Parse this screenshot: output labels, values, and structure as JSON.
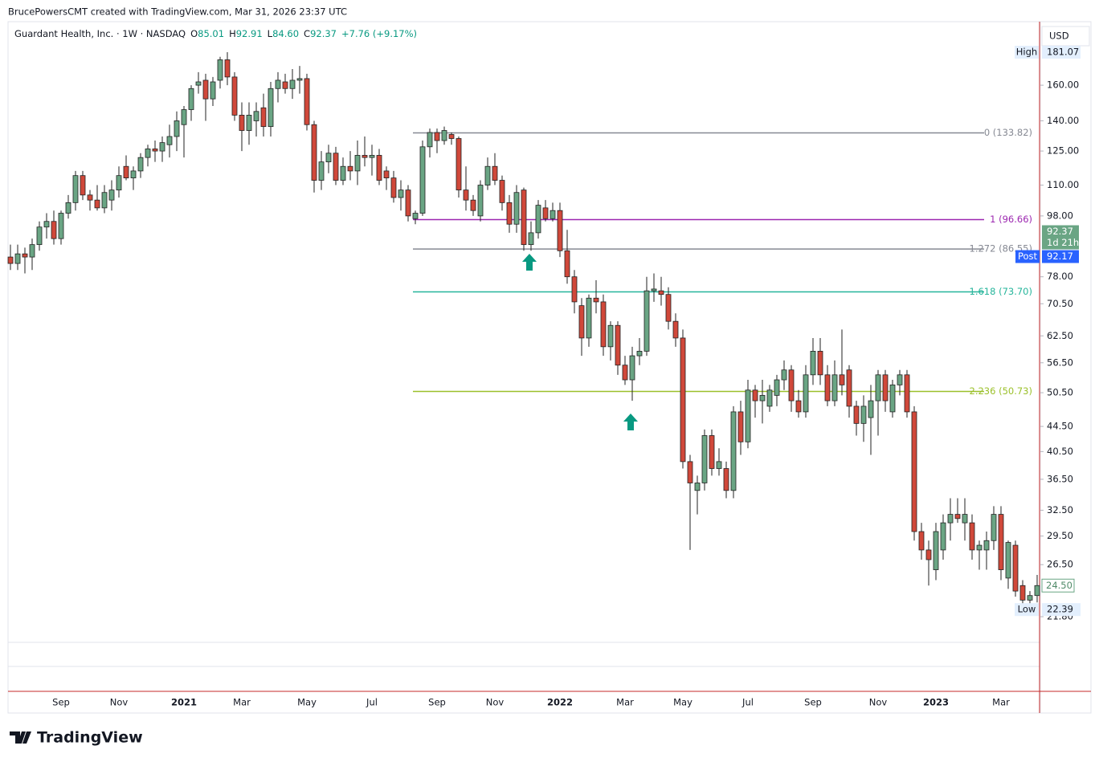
{
  "header": {
    "credit": "BrucePowersCMT created with TradingView.com, Mar 31, 2026 23:37 UTC",
    "symbol": "Guardant Health, Inc. · 1W · NASDAQ",
    "ohlc": [
      {
        "key": "O",
        "value": "85.01"
      },
      {
        "key": "H",
        "value": "92.91"
      },
      {
        "key": "L",
        "value": "84.60"
      },
      {
        "key": "C",
        "value": "92.37"
      }
    ],
    "change": "+7.76 (+9.17%)",
    "currency": "USD"
  },
  "brand": "TradingView",
  "chart_data": {
    "type": "candlestick",
    "log_scale": true,
    "up_color": "#6aa584",
    "down_color": "#d0483a",
    "border_color": "#222222",
    "ylim": [
      19.8,
      199.4
    ],
    "yticks": [
      {
        "value": 160,
        "label": "160.00"
      },
      {
        "value": 140,
        "label": "140.00"
      },
      {
        "value": 125,
        "label": "125.00"
      },
      {
        "value": 110,
        "label": "110.00"
      },
      {
        "value": 98,
        "label": "98.00"
      },
      {
        "value": 78,
        "label": "78.00"
      },
      {
        "value": 70.5,
        "label": "70.50"
      },
      {
        "value": 62.5,
        "label": "62.50"
      },
      {
        "value": 56.5,
        "label": "56.50"
      },
      {
        "value": 50.5,
        "label": "50.50"
      },
      {
        "value": 44.5,
        "label": "44.50"
      },
      {
        "value": 40.5,
        "label": "40.50"
      },
      {
        "value": 36.5,
        "label": "36.50"
      },
      {
        "value": 32.5,
        "label": "32.50"
      },
      {
        "value": 29.5,
        "label": "29.50"
      },
      {
        "value": 26.5,
        "label": "26.50"
      },
      {
        "value": 21.8,
        "label": "21.80"
      }
    ],
    "categories": [
      null,
      null,
      null,
      null,
      null,
      null,
      null,
      "Sep",
      null,
      null,
      null,
      null,
      null,
      null,
      null,
      "Nov",
      null,
      null,
      null,
      null,
      null,
      null,
      null,
      null,
      "2021",
      null,
      null,
      null,
      null,
      null,
      null,
      null,
      "Mar",
      null,
      null,
      null,
      null,
      null,
      null,
      null,
      null,
      "May",
      null,
      null,
      null,
      null,
      null,
      null,
      null,
      null,
      "Jul",
      null,
      null,
      null,
      null,
      null,
      null,
      null,
      null,
      "Sep",
      null,
      null,
      null,
      null,
      null,
      null,
      null,
      "Nov",
      null,
      null,
      null,
      null,
      null,
      null,
      null,
      null,
      "2022",
      null,
      null,
      null,
      null,
      null,
      null,
      null,
      null,
      "Mar",
      null,
      null,
      null,
      null,
      null,
      null,
      null,
      "May",
      null,
      null,
      null,
      null,
      null,
      null,
      null,
      null,
      "Jul",
      null,
      null,
      null,
      null,
      null,
      null,
      null,
      null,
      "Sep",
      null,
      null,
      null,
      null,
      null,
      null,
      null,
      null,
      "Nov",
      null,
      null,
      null,
      null,
      null,
      null,
      null,
      "2023",
      null,
      null,
      null,
      null,
      null,
      null,
      null,
      null,
      "Mar",
      null,
      null,
      null,
      null,
      null
    ],
    "open": [
      84,
      82,
      85,
      84,
      88,
      94,
      96,
      90,
      99,
      103,
      114,
      106,
      104,
      101,
      104,
      108,
      118,
      113,
      116,
      122,
      126,
      125,
      128,
      132,
      138,
      146,
      160,
      163,
      152,
      163,
      176,
      165,
      143,
      135,
      140,
      147,
      137,
      158,
      162,
      158,
      163,
      164,
      138,
      112,
      120,
      124,
      112,
      118,
      116,
      123,
      122,
      123,
      116,
      113,
      105,
      108,
      97,
      99,
      127,
      134,
      130,
      133,
      131,
      108,
      104,
      98,
      110,
      118,
      112,
      103,
      95,
      108,
      88,
      92,
      101,
      97,
      100,
      86,
      78,
      70,
      62,
      72,
      71,
      60,
      65,
      56,
      53,
      58,
      59,
      74,
      74,
      73,
      66,
      62,
      39,
      35,
      36,
      43,
      38,
      38,
      35,
      47,
      42,
      51,
      49,
      48,
      50,
      53,
      55,
      49,
      47,
      54,
      59,
      54,
      49,
      54,
      55,
      48,
      45,
      46,
      49,
      54,
      47,
      52,
      54,
      47,
      30,
      28,
      26,
      28,
      31,
      32,
      31,
      31,
      28,
      28,
      29,
      32,
      25.2,
      28.5,
      24.5,
      23.2,
      23.6
    ],
    "high": [
      88,
      88,
      87,
      90,
      96,
      99,
      100,
      100,
      106,
      116,
      116,
      108,
      110,
      110,
      112,
      118,
      123,
      118,
      124,
      128,
      130,
      132,
      138,
      145,
      148,
      160,
      168,
      167,
      165,
      178,
      181.07,
      168,
      150,
      150,
      150,
      155,
      162,
      168,
      167,
      170,
      172,
      167,
      140,
      125,
      128,
      127,
      122,
      125,
      130,
      132,
      128,
      126,
      118,
      116,
      112,
      110,
      100,
      130,
      136,
      136,
      137,
      134,
      132,
      118,
      106,
      112,
      122,
      124,
      114,
      106,
      110,
      109,
      96,
      104,
      104,
      103,
      103,
      93,
      80,
      72,
      73,
      77,
      73,
      66,
      66,
      58,
      60,
      62,
      78,
      79,
      78,
      75,
      68,
      64,
      40,
      37,
      44,
      44,
      41,
      39,
      48,
      49,
      53,
      52,
      53,
      52,
      54,
      57,
      56,
      51,
      56,
      62,
      62,
      56,
      57,
      64,
      56,
      49,
      50,
      52,
      55,
      55,
      53,
      55,
      55,
      48,
      31,
      29,
      31,
      32,
      34,
      34,
      34,
      32,
      29,
      30,
      33,
      33,
      29,
      29,
      25,
      24,
      25.5
    ],
    "low": [
      80,
      80,
      79,
      80,
      86,
      90,
      88,
      88,
      97,
      100,
      104,
      100,
      100,
      99,
      100,
      105,
      112,
      108,
      113,
      118,
      120,
      120,
      122,
      125,
      122,
      140,
      155,
      140,
      148,
      158,
      160,
      140,
      125,
      128,
      132,
      132,
      132,
      150,
      155,
      152,
      155,
      135,
      107,
      108,
      115,
      110,
      110,
      112,
      110,
      118,
      114,
      110,
      108,
      103,
      100,
      96,
      95,
      98,
      122,
      124,
      128,
      128,
      105,
      100,
      98,
      96,
      108,
      110,
      100,
      92,
      92,
      86,
      86,
      90,
      96,
      96,
      84,
      76,
      68,
      58,
      60,
      68,
      58,
      57,
      54,
      52,
      49,
      56,
      58,
      71,
      70,
      64,
      60,
      38,
      28,
      32,
      35,
      37,
      37,
      34,
      34,
      40,
      41,
      46,
      45,
      47,
      48,
      51,
      47,
      46,
      46,
      52,
      52,
      48,
      48,
      50,
      46,
      43,
      42,
      40,
      43,
      47,
      46,
      50,
      46,
      29,
      27,
      24.5,
      25,
      27,
      29,
      31,
      29,
      27,
      26,
      26,
      28,
      25,
      24.2,
      23.5,
      22.39,
      22.8,
      23
    ],
    "close": [
      82,
      85,
      84,
      88,
      94,
      96,
      90,
      99,
      103,
      114,
      106,
      104,
      101,
      107,
      108,
      114,
      113,
      116,
      122,
      126,
      125,
      129,
      132,
      140,
      146,
      158,
      162,
      152,
      162,
      176,
      165,
      143,
      135,
      143,
      145,
      137,
      158,
      163,
      158,
      163,
      164,
      138,
      112,
      120,
      124,
      112,
      118,
      116,
      123,
      122,
      123,
      112,
      113,
      105,
      108,
      98,
      99,
      127,
      134,
      130,
      135,
      131,
      108,
      104,
      100,
      110,
      118,
      112,
      103,
      95,
      107,
      88,
      92,
      102,
      97,
      100,
      86,
      78,
      71,
      62,
      72,
      71,
      60,
      65,
      56,
      53,
      58,
      59,
      74,
      74.5,
      73,
      66,
      62,
      39,
      36,
      36,
      43,
      38,
      39,
      35,
      47,
      42,
      51,
      49,
      50,
      51,
      53,
      55,
      49,
      47,
      54,
      59,
      54,
      49,
      54,
      52,
      48,
      45,
      48,
      49,
      54,
      49,
      52,
      54,
      47,
      30,
      28,
      27,
      30,
      31,
      32,
      31.5,
      32,
      28,
      28.5,
      29,
      32,
      26,
      28.8,
      24,
      23.2,
      23.6,
      24.5
    ],
    "fib_levels": [
      {
        "value": 133.82,
        "label": "0 (133.82)",
        "color": "#868993"
      },
      {
        "value": 96.66,
        "label": "1 (96.66)",
        "color": "#9c27b0"
      },
      {
        "value": 86.55,
        "label": "1.272 (86.55)",
        "color": "#868993"
      },
      {
        "value": 73.7,
        "label": "1.618 (73.70)",
        "color": "#26b59b"
      },
      {
        "value": 50.73,
        "label": "2.236 (50.73)",
        "color": "#9bc02a"
      }
    ],
    "price_markers": [
      {
        "tag": "High",
        "value": 181.07,
        "style": "tag"
      },
      {
        "value": 92.37,
        "note": "1d 21h",
        "style": "current"
      },
      {
        "tag": "Post",
        "value": 92.17,
        "style": "post"
      },
      {
        "value": {
          "value": 24.5,
          "label": "24.50"
        },
        "style": "last"
      },
      {
        "tag": "Low",
        "value": 22.39,
        "style": "tag"
      }
    ]
  }
}
